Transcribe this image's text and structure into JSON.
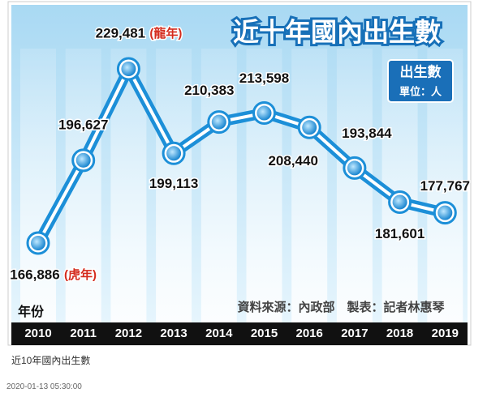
{
  "chart_data": {
    "type": "line",
    "title": "近十年國內出生數",
    "unit_label": "單位：人",
    "x_label": "年份",
    "source": "資料來源：內政部　製表：記者林惠琴",
    "categories": [
      "2010",
      "2011",
      "2012",
      "2013",
      "2014",
      "2015",
      "2016",
      "2017",
      "2018",
      "2019"
    ],
    "series": [
      {
        "name": "出生數",
        "color": "#1c8fd8",
        "values": [
          166886,
          196627,
          229481,
          199113,
          210383,
          213598,
          208440,
          193844,
          181601,
          177767
        ],
        "value_labels": [
          "166,886",
          "196,627",
          "229,481",
          "199,113",
          "210,383",
          "213,598",
          "208,440",
          "193,844",
          "181,601",
          "177,767"
        ]
      }
    ],
    "annotations": [
      "(虎年)",
      "(龍年)"
    ]
  },
  "caption": "近10年國內出生數",
  "timestamp": "2020-01-13 05:30:00"
}
